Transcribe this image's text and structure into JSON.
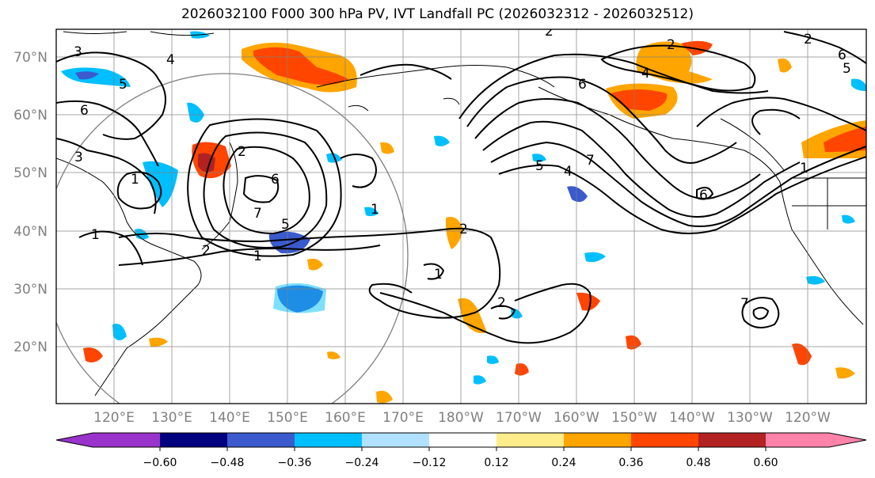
{
  "title": "2026032100 F000 300 hPa PV, IVT Landfall PC (2026032312 - 2026032512)",
  "lat_labels": [
    "70°N",
    "60°N",
    "50°N",
    "40°N",
    "30°N",
    "20°N"
  ],
  "lon_labels": [
    "120°E",
    "130°E",
    "140°E",
    "150°E",
    "160°E",
    "170°E",
    "180°W",
    "170°W",
    "160°W",
    "150°W",
    "140°W",
    "130°W",
    "120°W"
  ],
  "colorbar": {
    "colors": [
      "#9933cc",
      "#000080",
      "#3a5acd",
      "#00bfff",
      "#b0e2ff",
      "#ffffff",
      "#ffec8b",
      "#ffa500",
      "#ff4500",
      "#b22222",
      "#ff82ab"
    ],
    "tick_labels": [
      "−0.60",
      "−0.48",
      "−0.36",
      "−0.24",
      "−0.12",
      "0.12",
      "0.24",
      "0.36",
      "0.48",
      "0.60"
    ]
  },
  "contour_labels": [
    "3",
    "4",
    "5",
    "6",
    "3",
    "1",
    "2",
    "1",
    "6",
    "2",
    "1",
    "7",
    "5",
    "1",
    "2",
    "2",
    "6",
    "4",
    "5",
    "7",
    "4",
    "2",
    "6",
    "5",
    "1",
    "2",
    "2",
    "7",
    "6",
    "1"
  ]
}
